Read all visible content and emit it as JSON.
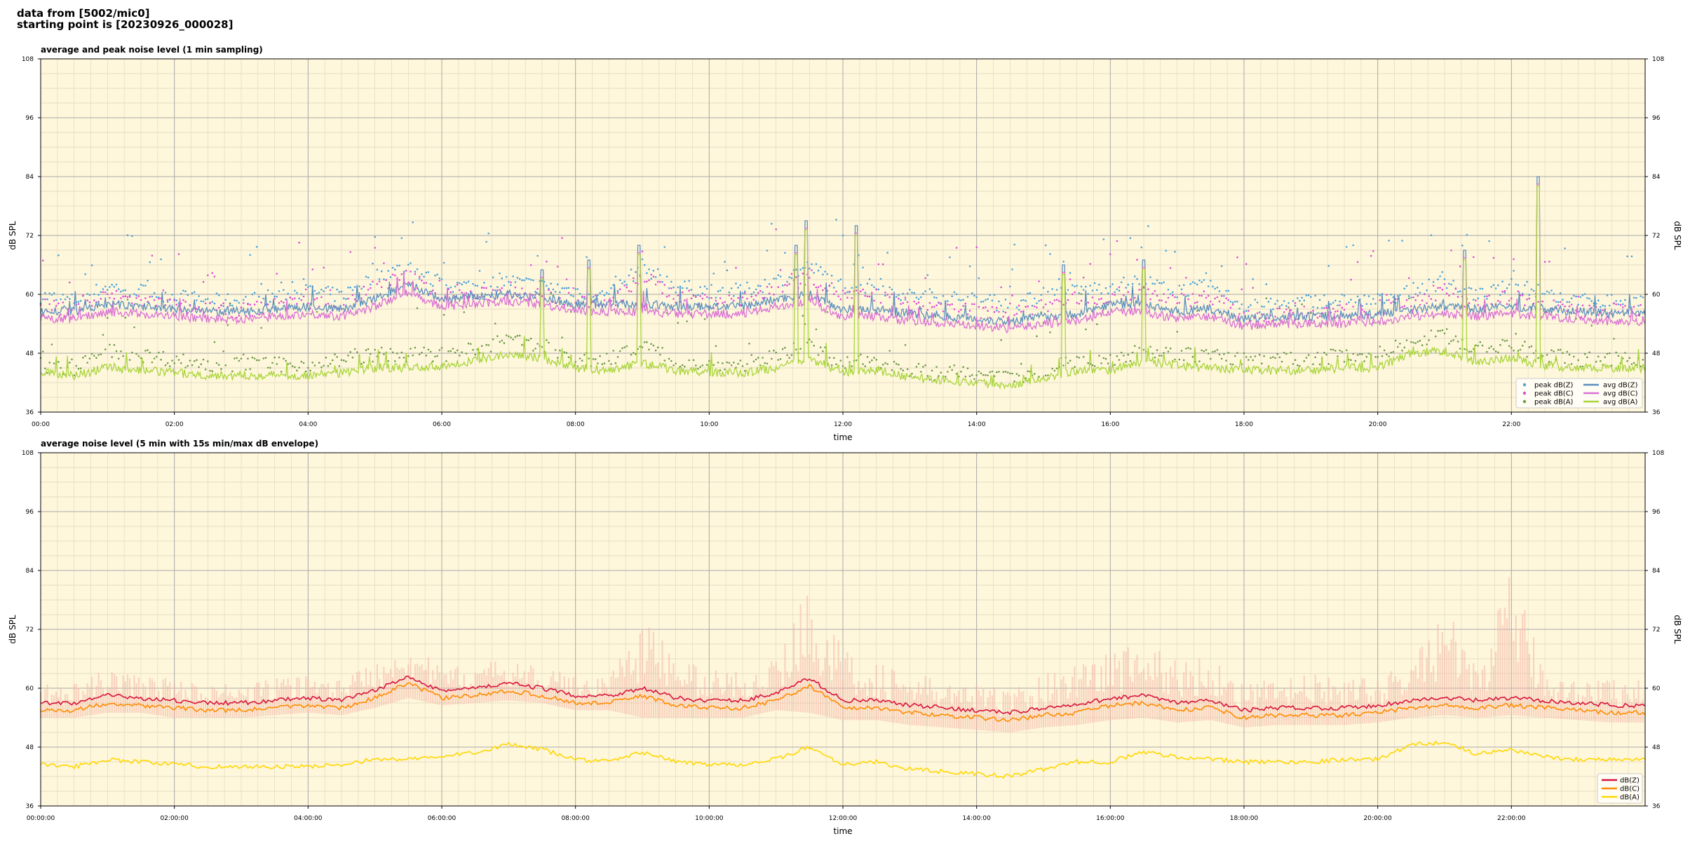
{
  "header": {
    "line1": "data from [5002/mic0]",
    "line2": "starting point is [20230926_000028]"
  },
  "colors": {
    "plot_bg": "#fff7dc",
    "grid_major": "#a8a8a8",
    "grid_minor": "#dcd6bd",
    "z_peak": "#4aa3d8",
    "c_peak": "#e04bd6",
    "a_peak": "#6e9b4a",
    "z_avg": "#5b8fbd",
    "c_avg": "#d96fd4",
    "a_avg": "#a8d53a",
    "z5": "#d8143c",
    "c5": "#ff8c00",
    "a5": "#ffd700",
    "envelope": "#f3b6a8"
  },
  "chart_data": [
    {
      "type": "line",
      "title": "average and peak noise level (1 min sampling)",
      "xlabel": "time",
      "ylabel": "dB SPL",
      "ylim": [
        36,
        108
      ],
      "yticks": [
        36,
        48,
        60,
        72,
        84,
        96,
        108
      ],
      "xlim": [
        0,
        24
      ],
      "xticks": [
        0,
        2,
        4,
        6,
        8,
        10,
        12,
        14,
        16,
        18,
        20,
        22
      ],
      "xtick_labels": [
        "00:00",
        "02:00",
        "04:00",
        "06:00",
        "08:00",
        "10:00",
        "12:00",
        "14:00",
        "16:00",
        "18:00",
        "20:00",
        "22:00"
      ],
      "grid": true,
      "legend_position": "bottom-right",
      "x": [
        0,
        0.5,
        1,
        1.5,
        2,
        2.5,
        3,
        3.5,
        4,
        4.5,
        5,
        5.5,
        6,
        6.5,
        7,
        7.5,
        8,
        8.5,
        9,
        9.5,
        10,
        10.5,
        11,
        11.5,
        12,
        12.5,
        13,
        13.5,
        14,
        14.5,
        15,
        15.5,
        16,
        16.5,
        17,
        17.5,
        18,
        18.5,
        19,
        19.5,
        20,
        20.5,
        21,
        21.5,
        22,
        22.5,
        23,
        23.5,
        24
      ],
      "series": [
        {
          "name": "peak dB(Z)",
          "kind": "scatter",
          "color_key": "z_peak",
          "values": [
            60,
            59,
            62,
            61,
            60,
            59,
            59,
            60,
            61,
            60,
            64,
            66,
            62,
            62,
            63,
            62,
            61,
            60,
            66,
            62,
            61,
            61,
            63,
            66,
            62,
            62,
            60,
            60,
            59,
            58,
            60,
            61,
            62,
            63,
            61,
            62,
            58,
            58,
            59,
            59,
            59,
            61,
            63,
            60,
            62,
            60,
            59,
            59,
            59
          ]
        },
        {
          "name": "peak dB(C)",
          "kind": "scatter",
          "color_key": "c_peak",
          "values": [
            58,
            57,
            60,
            59,
            58,
            57,
            57,
            58,
            59,
            58,
            62,
            64,
            60,
            60,
            61,
            60,
            59,
            58,
            64,
            60,
            59,
            59,
            61,
            64,
            60,
            60,
            58,
            58,
            57,
            56,
            58,
            59,
            60,
            61,
            59,
            60,
            56,
            56,
            57,
            57,
            57,
            59,
            61,
            58,
            60,
            58,
            57,
            57,
            57
          ]
        },
        {
          "name": "peak dB(A)",
          "kind": "scatter",
          "color_key": "a_peak",
          "values": [
            46,
            45,
            49,
            48,
            47,
            46,
            46,
            46,
            46,
            47,
            48,
            48,
            48,
            49,
            51,
            50,
            47,
            47,
            50,
            47,
            46,
            46,
            48,
            50,
            46,
            47,
            45,
            44,
            44,
            43,
            45,
            47,
            47,
            49,
            48,
            48,
            47,
            47,
            47,
            48,
            48,
            51,
            52,
            49,
            50,
            48,
            47,
            47,
            47
          ]
        },
        {
          "name": "avg dB(Z)",
          "kind": "line",
          "color_key": "z_avg",
          "values": [
            56.5,
            56.5,
            58,
            57.5,
            57,
            56.5,
            56.5,
            57,
            57.5,
            57,
            59,
            62,
            59,
            59.5,
            60,
            59.5,
            58,
            58,
            58,
            57.5,
            57.5,
            57.5,
            59,
            60,
            57,
            57,
            56,
            55.5,
            55,
            54.5,
            55.5,
            56,
            58,
            58,
            56.5,
            57,
            55,
            55.5,
            55.5,
            55.5,
            56,
            57,
            57.5,
            57,
            57.5,
            57,
            56.5,
            56,
            56
          ]
        },
        {
          "name": "avg dB(C)",
          "kind": "line",
          "color_key": "c_avg",
          "values": [
            55,
            55,
            56.5,
            56,
            55.5,
            55,
            55,
            55.5,
            56,
            55.5,
            57.5,
            60.5,
            57.5,
            58,
            58.5,
            58,
            56.5,
            56.5,
            56.5,
            56,
            56,
            56,
            57.5,
            58.5,
            55.5,
            55.5,
            54.5,
            54,
            53.5,
            53,
            54,
            54.5,
            56.5,
            56.5,
            55,
            55.5,
            53.5,
            54,
            54,
            54,
            54.5,
            55.5,
            56,
            55.5,
            56,
            55.5,
            55,
            54.5,
            54.5
          ]
        },
        {
          "name": "avg dB(A)",
          "kind": "line",
          "color_key": "a_avg",
          "values": [
            44,
            43.5,
            45,
            44.5,
            44,
            43.5,
            43.5,
            43.5,
            43.5,
            44,
            45,
            45,
            45.5,
            46.5,
            48,
            47,
            45,
            44.5,
            46,
            44.5,
            44,
            44,
            45,
            47,
            44,
            44.5,
            43,
            42.5,
            42,
            41.5,
            43,
            44.5,
            44.5,
            46.5,
            45.5,
            45,
            44.5,
            44.5,
            44.5,
            45,
            45,
            48,
            48.5,
            46,
            47,
            45.5,
            45,
            45,
            45
          ]
        }
      ]
    },
    {
      "type": "line",
      "title": "average noise level (5 min with 15s min/max dB envelope)",
      "xlabel": "time",
      "ylabel": "dB SPL",
      "ylim": [
        36,
        108
      ],
      "yticks": [
        36,
        48,
        60,
        72,
        84,
        96,
        108
      ],
      "xlim": [
        0,
        24
      ],
      "xticks": [
        0,
        2,
        4,
        6,
        8,
        10,
        12,
        14,
        16,
        18,
        20,
        22
      ],
      "xtick_labels": [
        "00:00:00",
        "02:00:00",
        "04:00:00",
        "06:00:00",
        "08:00:00",
        "10:00:00",
        "12:00:00",
        "14:00:00",
        "16:00:00",
        "18:00:00",
        "20:00:00",
        "22:00:00"
      ],
      "grid": true,
      "legend_position": "bottom-right",
      "x": [
        0,
        0.5,
        1,
        1.5,
        2,
        2.5,
        3,
        3.5,
        4,
        4.5,
        5,
        5.5,
        6,
        6.5,
        7,
        7.5,
        8,
        8.5,
        9,
        9.5,
        10,
        10.5,
        11,
        11.5,
        12,
        12.5,
        13,
        13.5,
        14,
        14.5,
        15,
        15.5,
        16,
        16.5,
        17,
        17.5,
        18,
        18.5,
        19,
        19.5,
        20,
        20.5,
        21,
        21.5,
        22,
        22.5,
        23,
        23.5,
        24
      ],
      "envelope": {
        "min": [
          54,
          54,
          55,
          55,
          54,
          54,
          54,
          54.5,
          55,
          54.5,
          56,
          58,
          56.5,
          57,
          57.5,
          57,
          55.5,
          55.5,
          54,
          54,
          54,
          54,
          55.5,
          55,
          53.5,
          53.5,
          52.5,
          52,
          51.5,
          51,
          52,
          52.5,
          53.5,
          54,
          53,
          53.5,
          52,
          52.5,
          52.5,
          52.5,
          53,
          54,
          54.5,
          54,
          54.5,
          54,
          53.5,
          53,
          53
        ],
        "max": [
          61,
          61,
          64,
          63,
          62,
          61,
          61,
          62,
          63,
          62,
          66,
          70,
          64,
          65,
          66,
          64,
          63,
          63,
          75,
          67,
          64,
          64,
          66,
          82,
          68,
          66,
          63,
          62,
          61,
          60,
          63,
          66,
          68,
          70,
          66,
          67,
          61,
          62,
          63,
          62,
          62,
          66,
          77,
          64,
          84,
          64,
          62,
          62,
          62
        ]
      },
      "series": [
        {
          "name": "dB(Z)",
          "color_key": "z5",
          "values": [
            57,
            57,
            58.5,
            58,
            57.5,
            57,
            57,
            57.5,
            58,
            57.5,
            59.5,
            62.5,
            59.5,
            60,
            61,
            60,
            58.5,
            58.5,
            60,
            58,
            57.5,
            57.5,
            59,
            62,
            57.5,
            57.5,
            56.5,
            56,
            55.5,
            55,
            56,
            56.5,
            58,
            58.5,
            57,
            57.5,
            55.5,
            56,
            56,
            56,
            56.5,
            57.5,
            58,
            57.5,
            58,
            57.5,
            57,
            56.5,
            56.5
          ]
        },
        {
          "name": "dB(C)",
          "color_key": "c5",
          "values": [
            55.5,
            55.5,
            57,
            56.5,
            56,
            55.5,
            55.5,
            56,
            56.5,
            56,
            58,
            61,
            58,
            58.5,
            59.5,
            58.5,
            57,
            57,
            58.5,
            56.5,
            56,
            56,
            57.5,
            60.5,
            56,
            56,
            55,
            54.5,
            54,
            53.5,
            54.5,
            55,
            56.5,
            57,
            55.5,
            56,
            54,
            54.5,
            54.5,
            54.5,
            55,
            56,
            56.5,
            56,
            56.5,
            56,
            55.5,
            55,
            55
          ]
        },
        {
          "name": "dB(A)",
          "color_key": "a5",
          "values": [
            44.5,
            44,
            45.5,
            45,
            44.5,
            44,
            44,
            44,
            44,
            44.5,
            45.5,
            45.5,
            46,
            47,
            48.5,
            47.5,
            45.5,
            45,
            47,
            45,
            44.5,
            44.5,
            45.5,
            48,
            44.5,
            45,
            43.5,
            43,
            42.5,
            42,
            43.5,
            45,
            45,
            47,
            46,
            45.5,
            45,
            45,
            45,
            45.5,
            45.5,
            48.5,
            49,
            46.5,
            47.5,
            46,
            45.5,
            45.5,
            45.5
          ]
        }
      ]
    }
  ],
  "spikes_top": [
    {
      "x": 7.5,
      "y": 65
    },
    {
      "x": 8.2,
      "y": 67
    },
    {
      "x": 8.95,
      "y": 70
    },
    {
      "x": 11.3,
      "y": 70
    },
    {
      "x": 11.45,
      "y": 75
    },
    {
      "x": 12.2,
      "y": 74
    },
    {
      "x": 15.3,
      "y": 66
    },
    {
      "x": 16.5,
      "y": 67
    },
    {
      "x": 21.3,
      "y": 69
    },
    {
      "x": 22.4,
      "y": 84
    }
  ]
}
